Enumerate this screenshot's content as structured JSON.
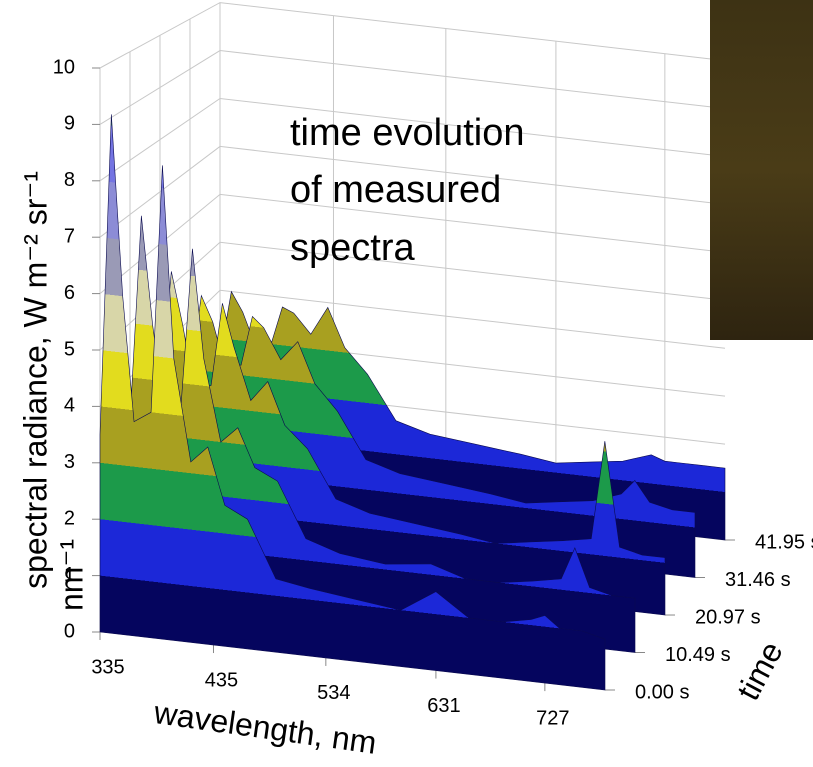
{
  "chart_data": {
    "type": "surface",
    "annotation": [
      "time evolution",
      "of measured",
      "spectra"
    ],
    "y_label": [
      "spectral radiance, W m⁻² sr⁻¹",
      "nm⁻¹"
    ],
    "x_label": "wavelength, nm",
    "t_label": "time",
    "x": [
      335,
      345,
      355,
      365,
      380,
      390,
      400,
      415,
      430,
      445,
      465,
      490,
      520,
      560,
      600,
      631,
      660,
      690,
      715,
      727,
      740,
      760,
      780
    ],
    "xlim": [
      335,
      780
    ],
    "xticks": [
      335,
      435,
      534,
      631,
      727
    ],
    "ylim": [
      0,
      10
    ],
    "yticks": [
      0,
      1,
      2,
      3,
      4,
      5,
      6,
      7,
      8,
      9,
      10
    ],
    "tlim": [
      0,
      41.95
    ],
    "tticks": [
      {
        "value": 0,
        "label": "0.00 s"
      },
      {
        "value": 10.49,
        "label": "10.49 s"
      },
      {
        "value": 20.97,
        "label": "20.97 s"
      },
      {
        "value": 31.46,
        "label": "31.46 s"
      },
      {
        "value": 41.95,
        "label": "41.95 s"
      }
    ],
    "band_colors": [
      "#05055e",
      "#1c28d8",
      "#1c9a4a",
      "#a8a020",
      "#e2dc1e",
      "#d8d6a8",
      "#9a9ab6",
      "#8c8cd6",
      "#7474e2",
      "#3aa04a"
    ],
    "grid": true,
    "series": [
      {
        "values": [
          3.5,
          9.2,
          6,
          3.8,
          4,
          8.4,
          5,
          3.2,
          3.5,
          2.5,
          2.3,
          1.3,
          1.2,
          1.1,
          1.0,
          1.4,
          1.0,
          1.0,
          1.1,
          1.2,
          1.0,
          1.0,
          0.9
        ]
      },
      {
        "values": [
          3.2,
          7,
          5,
          3.5,
          3.6,
          6.5,
          4.5,
          3.0,
          3.3,
          2.6,
          2.4,
          1.4,
          1.2,
          1.1,
          1.2,
          1.0,
          1.0,
          1.1,
          1.2,
          1.8,
          1.1,
          1.0,
          1.0
        ]
      },
      {
        "values": [
          3,
          5.5,
          4.5,
          3.3,
          3.4,
          5,
          4.2,
          3.2,
          3.6,
          2.8,
          2.4,
          1.5,
          1.3,
          1.2,
          1.1,
          1.0,
          1.1,
          1.2,
          1.3,
          3.2,
          1.2,
          1.1,
          1.1
        ]
      },
      {
        "values": [
          2.8,
          4.5,
          4,
          3.2,
          3.2,
          4.2,
          4,
          3.4,
          3.8,
          3.0,
          2.5,
          1.6,
          1.4,
          1.3,
          1.2,
          1.1,
          1.2,
          1.3,
          1.5,
          1.8,
          1.4,
          1.3,
          1.3
        ]
      },
      {
        "values": [
          2.6,
          4,
          3.6,
          3.0,
          3.0,
          3.8,
          3.7,
          3.3,
          3.9,
          3.1,
          2.6,
          1.7,
          1.5,
          1.4,
          1.3,
          1.2,
          1.3,
          1.4,
          1.6,
          1.5,
          1.5,
          1.5,
          1.5
        ]
      }
    ]
  }
}
